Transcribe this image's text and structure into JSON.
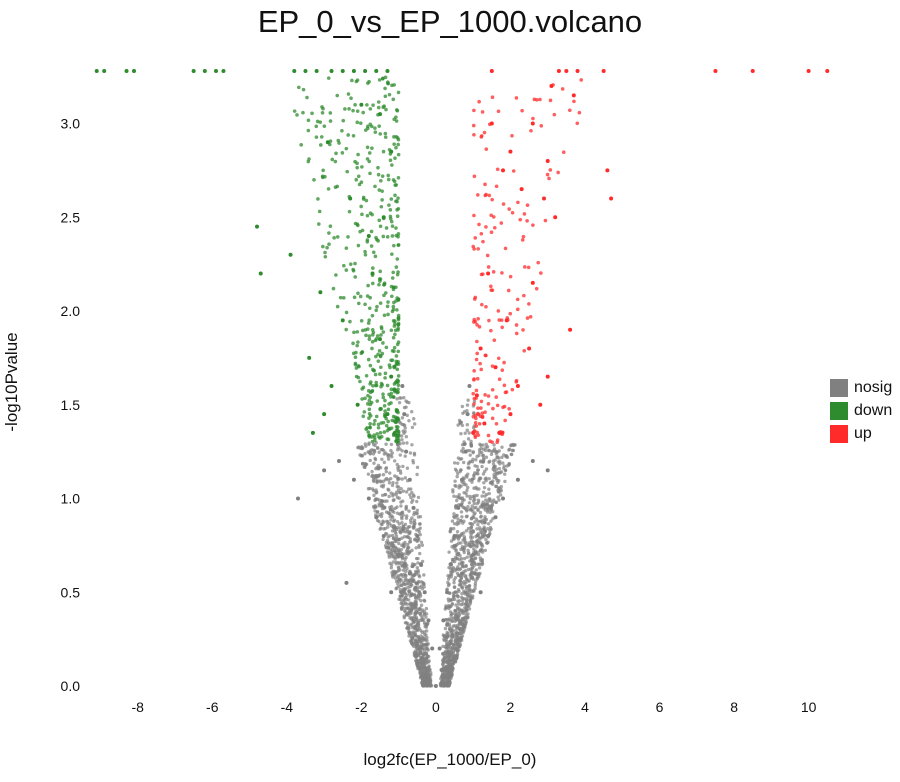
{
  "chart_data": {
    "type": "scatter",
    "title": "EP_0_vs_EP_1000.volcano",
    "xlabel": "log2fc(EP_1000/EP_0)",
    "ylabel": "-log10Pvalue",
    "xlim": [
      -9.2,
      10.6
    ],
    "ylim": [
      0,
      3.28
    ],
    "x_ticks": [
      -8,
      -6,
      -4,
      -2,
      0,
      2,
      4,
      6,
      8,
      10
    ],
    "y_ticks": [
      0.0,
      0.5,
      1.0,
      1.5,
      2.0,
      2.5,
      3.0
    ],
    "x_tick_labels": [
      "-8",
      "-6",
      "-4",
      "-2",
      "0",
      "2",
      "4",
      "6",
      "8",
      "10"
    ],
    "y_tick_labels": [
      "0.0",
      "0.5",
      "1.0",
      "1.5",
      "2.0",
      "2.5",
      "3.0"
    ],
    "grid": false,
    "legend_position": "right",
    "series": [
      {
        "name": "nosig",
        "color": "#808080",
        "points": [
          [
            0,
            0
          ],
          [
            0.1,
            0.2
          ],
          [
            -0.1,
            0.2
          ],
          [
            0.2,
            0.35
          ],
          [
            -0.2,
            0.35
          ],
          [
            0.3,
            0.5
          ],
          [
            -0.3,
            0.5
          ],
          [
            0.4,
            0.65
          ],
          [
            -0.4,
            0.65
          ],
          [
            0.5,
            0.8
          ],
          [
            -0.5,
            0.8
          ],
          [
            0.6,
            0.95
          ],
          [
            -0.6,
            0.95
          ],
          [
            0.7,
            1.1
          ],
          [
            -0.7,
            1.1
          ],
          [
            0.8,
            1.25
          ],
          [
            -0.8,
            1.25
          ],
          [
            0.85,
            1.45
          ],
          [
            -0.85,
            1.45
          ],
          [
            0.9,
            1.6
          ],
          [
            -0.9,
            1.6
          ],
          [
            0.7,
            0.6
          ],
          [
            -0.7,
            0.6
          ],
          [
            1.0,
            0.7
          ],
          [
            -1.0,
            0.7
          ],
          [
            1.4,
            0.8
          ],
          [
            -1.4,
            0.8
          ],
          [
            1.8,
            1.0
          ],
          [
            -1.8,
            1.0
          ],
          [
            2.2,
            1.1
          ],
          [
            -2.2,
            1.1
          ],
          [
            2.6,
            1.2
          ],
          [
            -2.6,
            1.2
          ],
          [
            3.0,
            1.15
          ],
          [
            -3.0,
            1.15
          ],
          [
            -3.7,
            1.0
          ],
          [
            -2.4,
            0.55
          ],
          [
            1.2,
            0.5
          ],
          [
            -1.2,
            0.5
          ],
          [
            0.3,
            0.1
          ],
          [
            -0.3,
            0.1
          ],
          [
            1.6,
            0.9
          ],
          [
            -1.6,
            0.9
          ]
        ]
      },
      {
        "name": "down",
        "color": "#2e8b2e",
        "points": [
          [
            -9.1,
            3.28
          ],
          [
            -8.9,
            3.28
          ],
          [
            -8.3,
            3.28
          ],
          [
            -8.1,
            3.28
          ],
          [
            -6.5,
            3.28
          ],
          [
            -6.2,
            3.28
          ],
          [
            -5.9,
            3.28
          ],
          [
            -5.7,
            3.28
          ],
          [
            -3.8,
            3.28
          ],
          [
            -3.5,
            3.28
          ],
          [
            -3.2,
            3.28
          ],
          [
            -2.8,
            3.28
          ],
          [
            -2.5,
            3.28
          ],
          [
            -2.2,
            3.28
          ],
          [
            -1.9,
            3.28
          ],
          [
            -1.6,
            3.28
          ],
          [
            -1.3,
            3.28
          ],
          [
            -2.0,
            3.1
          ],
          [
            -1.5,
            3.05
          ],
          [
            -2.9,
            2.9
          ],
          [
            -1.2,
            2.85
          ],
          [
            -2.3,
            2.6
          ],
          [
            -1.8,
            2.4
          ],
          [
            -4.8,
            2.45
          ],
          [
            -3.9,
            2.3
          ],
          [
            -4.7,
            2.2
          ],
          [
            -3.1,
            2.1
          ],
          [
            -2.5,
            1.95
          ],
          [
            -3.4,
            1.75
          ],
          [
            -2.8,
            1.6
          ],
          [
            -1.5,
            1.85
          ],
          [
            -1.2,
            1.65
          ],
          [
            -1.3,
            1.45
          ],
          [
            -1.1,
            1.35
          ],
          [
            -2.1,
            1.5
          ],
          [
            -3.0,
            1.45
          ],
          [
            -1.7,
            2.2
          ],
          [
            -1.4,
            2.5
          ],
          [
            -3.3,
            1.35
          ]
        ]
      },
      {
        "name": "up",
        "color": "#ff2a2a",
        "points": [
          [
            1.5,
            3.28
          ],
          [
            3.3,
            3.28
          ],
          [
            3.5,
            3.28
          ],
          [
            3.8,
            3.28
          ],
          [
            4.5,
            3.28
          ],
          [
            7.5,
            3.28
          ],
          [
            8.5,
            3.28
          ],
          [
            10.0,
            3.28
          ],
          [
            10.5,
            3.28
          ],
          [
            3.1,
            3.2
          ],
          [
            3.7,
            3.15
          ],
          [
            1.5,
            3.0
          ],
          [
            2.6,
            3.0
          ],
          [
            2.0,
            2.85
          ],
          [
            3.0,
            2.8
          ],
          [
            1.8,
            2.75
          ],
          [
            4.6,
            2.75
          ],
          [
            2.3,
            2.65
          ],
          [
            3.2,
            2.5
          ],
          [
            4.7,
            2.6
          ],
          [
            2.9,
            2.6
          ],
          [
            1.4,
            2.2
          ],
          [
            2.6,
            2.15
          ],
          [
            1.9,
            1.95
          ],
          [
            3.6,
            1.9
          ],
          [
            1.2,
            1.8
          ],
          [
            1.6,
            1.7
          ],
          [
            2.2,
            1.6
          ],
          [
            1.1,
            1.55
          ],
          [
            2.8,
            1.5
          ],
          [
            1.3,
            1.4
          ],
          [
            1.7,
            1.35
          ],
          [
            1.0,
            1.35
          ],
          [
            2.0,
            1.45
          ],
          [
            2.5,
            1.8
          ],
          [
            3.0,
            1.65
          ]
        ]
      }
    ]
  }
}
